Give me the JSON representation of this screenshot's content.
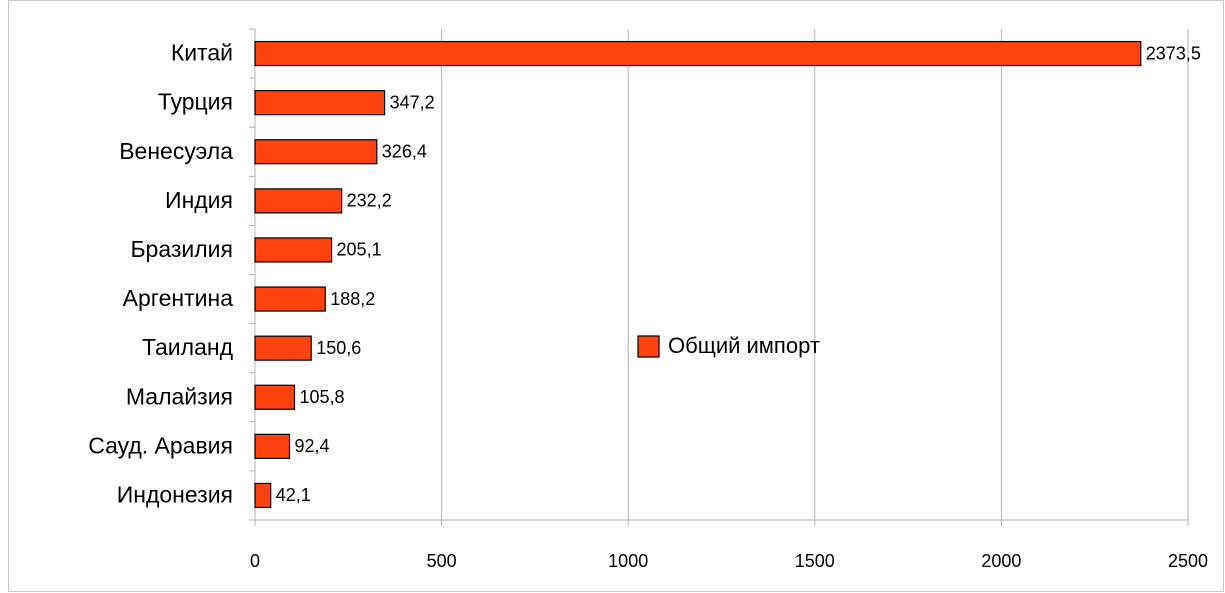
{
  "chart_data": {
    "type": "hbar",
    "categories": [
      "Китай",
      "Турция",
      "Венесуэла",
      "Индия",
      "Бразилия",
      "Аргентина",
      "Таиланд",
      "Малайзия",
      "Сауд. Аравия",
      "Индонезия"
    ],
    "series": [
      {
        "name": "Общий импорт",
        "color": "#ff420e",
        "values": [
          2373.5,
          347.2,
          326.4,
          232.2,
          205.1,
          188.2,
          150.6,
          105.8,
          92.4,
          42.1
        ],
        "value_labels": [
          "2373,5",
          "347,2",
          "326,4",
          "232,2",
          "205,1",
          "188,2",
          "150,6",
          "105,8",
          "92,4",
          "42,1"
        ]
      }
    ],
    "xlim": [
      0,
      2500
    ],
    "xticks": [
      0,
      500,
      1000,
      1500,
      2000,
      2500
    ],
    "grid": true,
    "legend": "center"
  }
}
